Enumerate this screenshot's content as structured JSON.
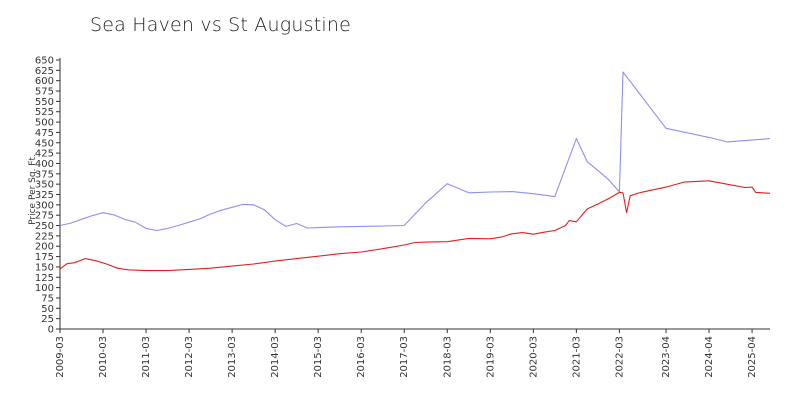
{
  "chart_data": {
    "type": "line",
    "title": "Sea Haven vs St Augustine",
    "ylabel": "Price Per Sq. Ft.",
    "xlabel": "",
    "ylim": [
      0,
      650
    ],
    "yticks": [
      0,
      25,
      50,
      75,
      100,
      125,
      150,
      175,
      200,
      225,
      250,
      275,
      300,
      325,
      350,
      375,
      400,
      425,
      450,
      475,
      500,
      525,
      550,
      575,
      600,
      625,
      650
    ],
    "xlim": [
      "2009-03",
      "2025-09"
    ],
    "xticks": [
      "2009-03",
      "2010-03",
      "2011-03",
      "2012-03",
      "2013-03",
      "2014-03",
      "2015-03",
      "2016-03",
      "2017-03",
      "2018-03",
      "2019-03",
      "2020-03",
      "2021-03",
      "2022-03",
      "2023-04",
      "2024-04",
      "2025-04"
    ],
    "grid": false,
    "legend": "none",
    "series": [
      {
        "color": "#8f8fef",
        "points": [
          [
            "2009-03",
            250
          ],
          [
            "2009-06",
            256
          ],
          [
            "2009-09",
            265
          ],
          [
            "2009-12",
            274
          ],
          [
            "2010-03",
            281
          ],
          [
            "2010-06",
            276
          ],
          [
            "2010-09",
            265
          ],
          [
            "2010-12",
            258
          ],
          [
            "2011-03",
            243
          ],
          [
            "2011-06",
            238
          ],
          [
            "2011-09",
            243
          ],
          [
            "2011-12",
            250
          ],
          [
            "2012-03",
            258
          ],
          [
            "2012-06",
            266
          ],
          [
            "2012-09",
            278
          ],
          [
            "2012-12",
            287
          ],
          [
            "2013-03",
            294
          ],
          [
            "2013-06",
            301
          ],
          [
            "2013-09",
            300
          ],
          [
            "2013-12",
            288
          ],
          [
            "2014-03",
            264
          ],
          [
            "2014-06",
            248
          ],
          [
            "2014-09",
            255
          ],
          [
            "2014-12",
            244
          ],
          [
            "2015-03",
            245
          ],
          [
            "2015-09",
            247
          ],
          [
            "2016-03",
            248
          ],
          [
            "2016-09",
            249
          ],
          [
            "2017-03",
            250
          ],
          [
            "2017-09",
            305
          ],
          [
            "2018-03",
            351
          ],
          [
            "2018-09",
            329
          ],
          [
            "2019-03",
            331
          ],
          [
            "2019-09",
            332
          ],
          [
            "2020-03",
            327
          ],
          [
            "2020-09",
            320
          ],
          [
            "2021-03",
            460
          ],
          [
            "2021-06",
            405
          ],
          [
            "2021-12",
            361
          ],
          [
            "2022-03",
            331
          ],
          [
            "2022-04",
            621
          ],
          [
            "2023-04",
            485
          ],
          [
            "2024-04",
            463
          ],
          [
            "2024-09",
            452
          ],
          [
            "2025-09",
            460
          ]
        ]
      },
      {
        "color": "#e02020",
        "points": [
          [
            "2009-03",
            145
          ],
          [
            "2009-05",
            158
          ],
          [
            "2009-07",
            160
          ],
          [
            "2009-10",
            170
          ],
          [
            "2010-01",
            165
          ],
          [
            "2010-04",
            157
          ],
          [
            "2010-07",
            147
          ],
          [
            "2010-10",
            143
          ],
          [
            "2011-03",
            141
          ],
          [
            "2011-09",
            141
          ],
          [
            "2012-03",
            144
          ],
          [
            "2012-09",
            147
          ],
          [
            "2013-03",
            152
          ],
          [
            "2013-09",
            157
          ],
          [
            "2014-03",
            164
          ],
          [
            "2014-09",
            170
          ],
          [
            "2015-03",
            176
          ],
          [
            "2015-09",
            182
          ],
          [
            "2016-03",
            186
          ],
          [
            "2016-09",
            194
          ],
          [
            "2017-03",
            203
          ],
          [
            "2017-06",
            209
          ],
          [
            "2017-09",
            210
          ],
          [
            "2018-03",
            211
          ],
          [
            "2018-09",
            219
          ],
          [
            "2019-03",
            218
          ],
          [
            "2019-06",
            222
          ],
          [
            "2019-09",
            230
          ],
          [
            "2019-12",
            233
          ],
          [
            "2020-03",
            229
          ],
          [
            "2020-06",
            234
          ],
          [
            "2020-09",
            238
          ],
          [
            "2020-12",
            250
          ],
          [
            "2021-01",
            262
          ],
          [
            "2021-03",
            259
          ],
          [
            "2021-06",
            290
          ],
          [
            "2021-09",
            302
          ],
          [
            "2021-12",
            315
          ],
          [
            "2022-03",
            330
          ],
          [
            "2022-04",
            329
          ],
          [
            "2022-05",
            281
          ],
          [
            "2022-06",
            322
          ],
          [
            "2022-09",
            330
          ],
          [
            "2023-04",
            343
          ],
          [
            "2023-09",
            355
          ],
          [
            "2024-04",
            358
          ],
          [
            "2024-09",
            350
          ],
          [
            "2025-02",
            342
          ],
          [
            "2025-04",
            343
          ],
          [
            "2025-05",
            330
          ],
          [
            "2025-09",
            328
          ]
        ]
      }
    ]
  }
}
